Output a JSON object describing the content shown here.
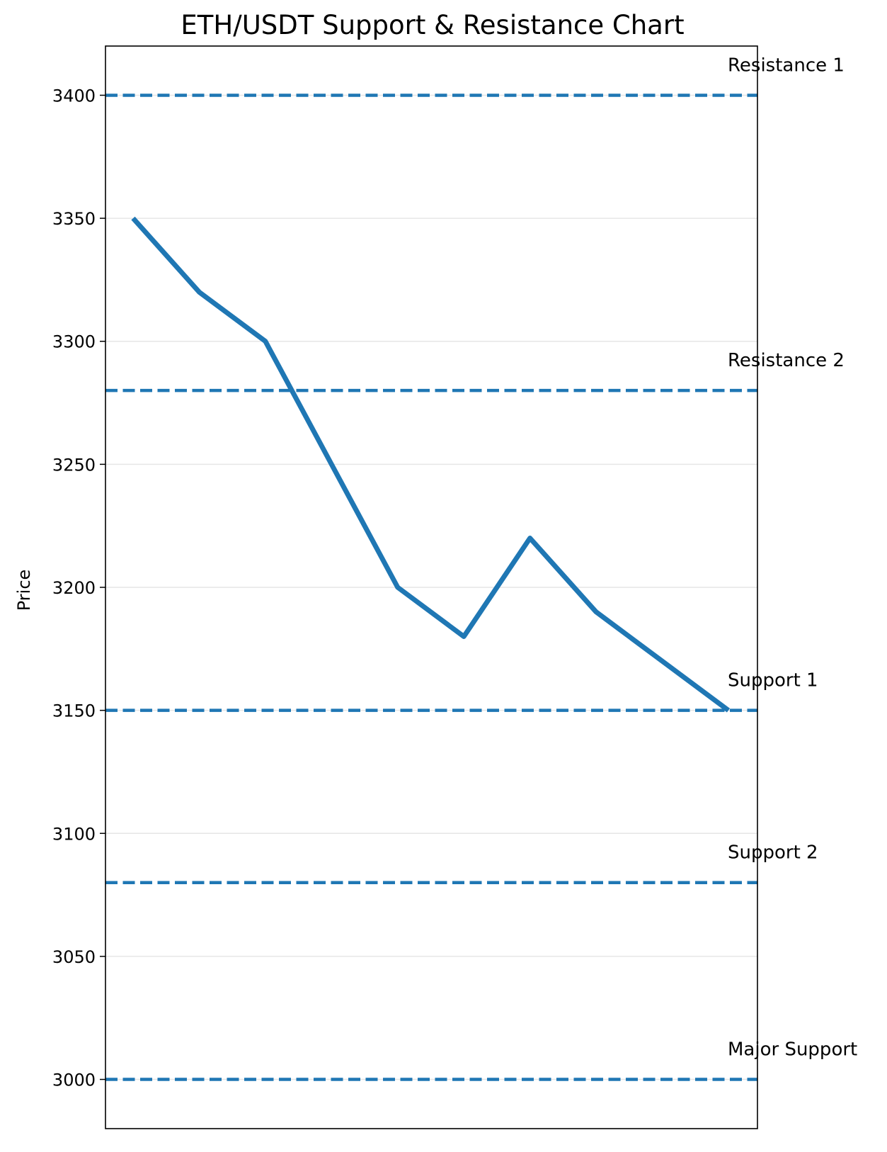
{
  "chart_data": {
    "type": "line",
    "title": "ETH/USDT Support & Resistance Chart",
    "xlabel": "",
    "ylabel": "Price",
    "ylim": [
      2980,
      3420
    ],
    "yticks": [
      3000,
      3050,
      3100,
      3150,
      3200,
      3250,
      3300,
      3350,
      3400
    ],
    "grid": "horizontal",
    "x_ticks_visible": false,
    "series": [
      {
        "values": [
          3350,
          3320,
          3300,
          3250,
          3200,
          3180,
          3220,
          3190,
          3170,
          3150
        ],
        "color": "#1f77b4"
      }
    ],
    "levels": [
      {
        "label": "Resistance 1",
        "value": 3400,
        "color": "#1f77b4"
      },
      {
        "label": "Resistance 2",
        "value": 3280,
        "color": "#1f77b4"
      },
      {
        "label": "Support 1",
        "value": 3150,
        "color": "#1f77b4"
      },
      {
        "label": "Support 2",
        "value": 3080,
        "color": "#1f77b4"
      },
      {
        "label": "Major Support",
        "value": 3000,
        "color": "#1f77b4"
      }
    ]
  }
}
